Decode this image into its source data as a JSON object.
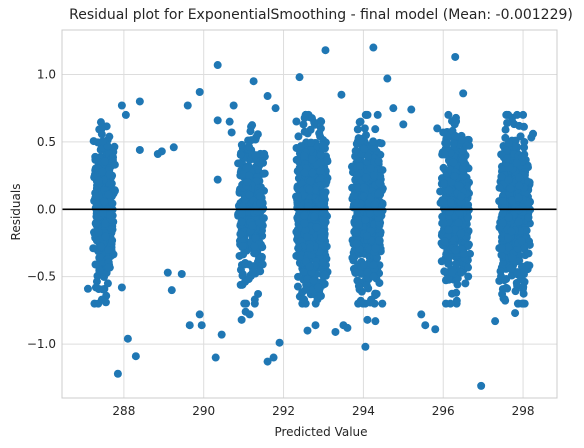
{
  "chart_data": {
    "type": "scatter",
    "title": "Residual plot for ExponentialSmoothing - final model (Mean: -0.001229)",
    "xlabel": "Predicted Value",
    "ylabel": "Residuals",
    "xlim": [
      286.45,
      298.85
    ],
    "ylim": [
      -1.4,
      1.33
    ],
    "xticks": [
      288,
      290,
      292,
      294,
      296,
      298
    ],
    "yticks": [
      -1.0,
      -0.5,
      0.0,
      0.5,
      1.0
    ],
    "xtick_labels": [
      "288",
      "290",
      "292",
      "294",
      "296",
      "298"
    ],
    "ytick_labels": [
      "−1.0",
      "−0.5",
      "0.0",
      "0.5",
      "1.0"
    ],
    "grid": true,
    "reference_line": {
      "y": 0.0,
      "color": "#000000"
    },
    "marker_color": "#1f77b4",
    "clusters": [
      {
        "x_center": 287.5,
        "x_spread": 0.28,
        "y_spread": 0.3,
        "count": 500
      },
      {
        "x_center": 291.2,
        "x_spread": 0.35,
        "y_spread": 0.3,
        "count": 380
      },
      {
        "x_center": 292.7,
        "x_spread": 0.42,
        "y_spread": 0.32,
        "count": 900
      },
      {
        "x_center": 294.1,
        "x_spread": 0.4,
        "y_spread": 0.32,
        "count": 700
      },
      {
        "x_center": 296.3,
        "x_spread": 0.4,
        "y_spread": 0.3,
        "count": 500
      },
      {
        "x_center": 297.8,
        "x_spread": 0.42,
        "y_spread": 0.3,
        "count": 600
      }
    ],
    "outliers": [
      {
        "x": 287.1,
        "y": -0.59
      },
      {
        "x": 287.3,
        "y": -0.58
      },
      {
        "x": 287.45,
        "y": -0.67
      },
      {
        "x": 287.55,
        "y": -0.69
      },
      {
        "x": 287.95,
        "y": -0.58
      },
      {
        "x": 287.6,
        "y": -0.55
      },
      {
        "x": 287.85,
        "y": -1.22
      },
      {
        "x": 288.1,
        "y": -0.96
      },
      {
        "x": 288.3,
        "y": -1.09
      },
      {
        "x": 288.4,
        "y": 0.44
      },
      {
        "x": 288.4,
        "y": 0.8
      },
      {
        "x": 288.05,
        "y": 0.7
      },
      {
        "x": 287.95,
        "y": 0.77
      },
      {
        "x": 288.85,
        "y": 0.41
      },
      {
        "x": 288.95,
        "y": 0.43
      },
      {
        "x": 289.25,
        "y": 0.46
      },
      {
        "x": 289.1,
        "y": -0.47
      },
      {
        "x": 289.45,
        "y": -0.48
      },
      {
        "x": 289.2,
        "y": -0.6
      },
      {
        "x": 289.65,
        "y": -0.86
      },
      {
        "x": 289.9,
        "y": -0.78
      },
      {
        "x": 289.95,
        "y": -0.86
      },
      {
        "x": 290.45,
        "y": -0.93
      },
      {
        "x": 290.3,
        "y": -1.1
      },
      {
        "x": 289.6,
        "y": 0.77
      },
      {
        "x": 289.9,
        "y": 0.87
      },
      {
        "x": 290.35,
        "y": 1.07
      },
      {
        "x": 290.35,
        "y": 0.22
      },
      {
        "x": 290.35,
        "y": 0.66
      },
      {
        "x": 290.65,
        "y": 0.65
      },
      {
        "x": 290.7,
        "y": 0.57
      },
      {
        "x": 290.75,
        "y": 0.77
      },
      {
        "x": 290.95,
        "y": -0.82
      },
      {
        "x": 291.15,
        "y": -0.78
      },
      {
        "x": 291.05,
        "y": -0.76
      },
      {
        "x": 291.25,
        "y": 0.95
      },
      {
        "x": 291.6,
        "y": -1.13
      },
      {
        "x": 291.75,
        "y": -1.1
      },
      {
        "x": 291.6,
        "y": 0.84
      },
      {
        "x": 291.8,
        "y": 0.75
      },
      {
        "x": 291.9,
        "y": -0.99
      },
      {
        "x": 292.4,
        "y": 0.98
      },
      {
        "x": 292.6,
        "y": -0.9
      },
      {
        "x": 292.8,
        "y": -0.86
      },
      {
        "x": 293.05,
        "y": 1.18
      },
      {
        "x": 293.3,
        "y": -0.91
      },
      {
        "x": 293.5,
        "y": -0.86
      },
      {
        "x": 293.6,
        "y": -0.88
      },
      {
        "x": 293.45,
        "y": 0.85
      },
      {
        "x": 294.05,
        "y": -1.02
      },
      {
        "x": 294.1,
        "y": -0.82
      },
      {
        "x": 294.3,
        "y": -0.83
      },
      {
        "x": 294.25,
        "y": 1.2
      },
      {
        "x": 294.6,
        "y": 0.97
      },
      {
        "x": 294.75,
        "y": 0.75
      },
      {
        "x": 295.0,
        "y": 0.63
      },
      {
        "x": 295.2,
        "y": 0.74
      },
      {
        "x": 295.45,
        "y": -0.78
      },
      {
        "x": 295.55,
        "y": -0.86
      },
      {
        "x": 295.8,
        "y": -0.89
      },
      {
        "x": 295.85,
        "y": 0.6
      },
      {
        "x": 296.0,
        "y": 0.57
      },
      {
        "x": 296.3,
        "y": 1.13
      },
      {
        "x": 296.5,
        "y": 0.86
      },
      {
        "x": 296.95,
        "y": -1.31
      },
      {
        "x": 297.3,
        "y": -0.83
      },
      {
        "x": 297.6,
        "y": 0.64
      },
      {
        "x": 297.85,
        "y": 0.7
      },
      {
        "x": 298.0,
        "y": 0.7
      },
      {
        "x": 297.8,
        "y": -0.77
      },
      {
        "x": 298.25,
        "y": 0.56
      }
    ]
  }
}
